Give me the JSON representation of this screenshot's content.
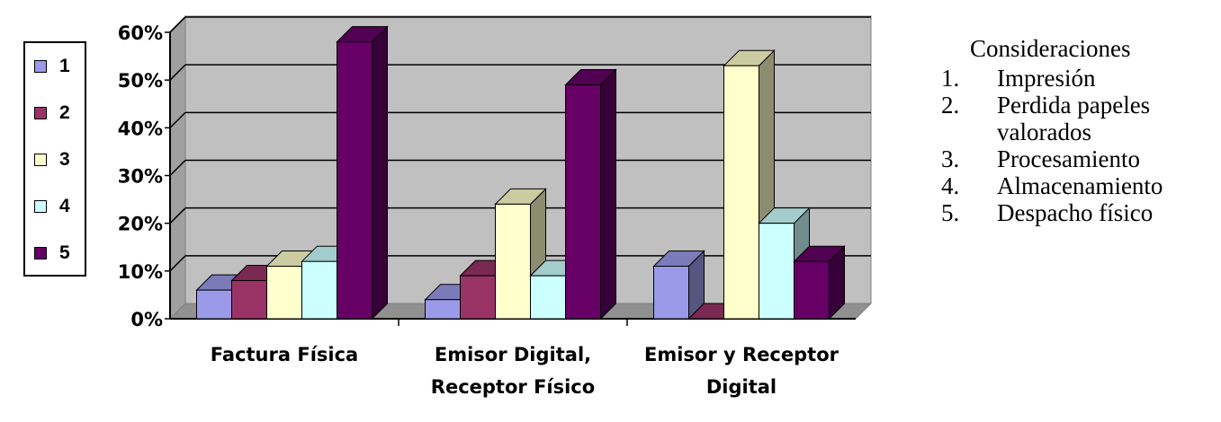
{
  "chart_data": {
    "type": "bar",
    "categories": [
      "Factura Física",
      "Emisor Digital, Receptor Físico",
      "Emisor y Receptor Digital"
    ],
    "category_lines": [
      [
        "Factura Física"
      ],
      [
        "Emisor Digital,",
        "Receptor Físico"
      ],
      [
        "Emisor y Receptor",
        "Digital"
      ]
    ],
    "series": [
      {
        "name": "1",
        "color": "#9a9ae8",
        "values": [
          6,
          4,
          11
        ]
      },
      {
        "name": "2",
        "color": "#993366",
        "values": [
          8,
          9,
          0
        ]
      },
      {
        "name": "3",
        "color": "#ffffcc",
        "values": [
          11,
          24,
          53
        ]
      },
      {
        "name": "4",
        "color": "#ccffff",
        "values": [
          12,
          9,
          20
        ]
      },
      {
        "name": "5",
        "color": "#660066",
        "values": [
          58,
          49,
          12
        ]
      }
    ],
    "yticks": [
      "0%",
      "10%",
      "20%",
      "30%",
      "40%",
      "50%",
      "60%"
    ],
    "ylim": [
      0,
      60
    ],
    "grid": true,
    "legend": "left",
    "wall_color": "#c0c0c0"
  },
  "notes": {
    "title": "Consideraciones",
    "items": [
      {
        "num": "1.",
        "lines": [
          "Impresión"
        ]
      },
      {
        "num": "2.",
        "lines": [
          "Perdida papeles",
          "valorados"
        ]
      },
      {
        "num": "3.",
        "lines": [
          "Procesamiento"
        ]
      },
      {
        "num": "4.",
        "lines": [
          "Almacenamiento"
        ]
      },
      {
        "num": "5.",
        "lines": [
          "Despacho físico"
        ]
      }
    ]
  }
}
